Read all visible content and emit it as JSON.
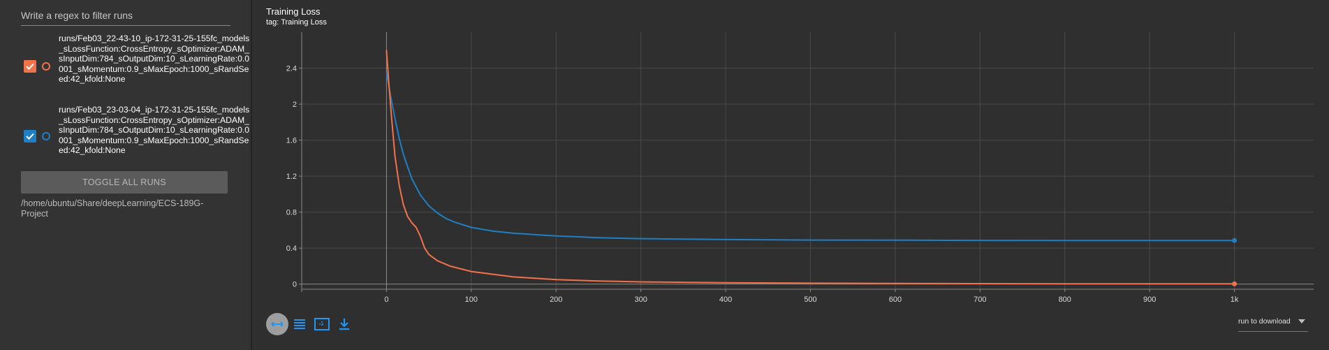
{
  "sidebar": {
    "filter_placeholder": "Write a regex to filter runs",
    "runs": [
      {
        "label": "runs/Feb03_22-43-10_ip-172-31-25-155fc_models_sLossFunction:CrossEntropy_sOptimizer:ADAM_sInputDim:784_sOutputDim:10_sLearningRate:0.0001_sMomentum:0.9_sMaxEpoch:1000_sRandSeed:42_kfold:None",
        "color": "#f2724a",
        "checked": true
      },
      {
        "label": "runs/Feb03_23-03-04_ip-172-31-25-155fc_models_sLossFunction:CrossEntropy_sOptimizer:ADAM_sInputDim:784_sOutputDim:10_sLearningRate:0.0001_sMomentum:0.9_sMaxEpoch:1000_sRandSeed:42_kfold:None",
        "color": "#1f7fc4",
        "checked": true
      }
    ],
    "toggle_label": "TOGGLE ALL RUNS",
    "logdir": "/home/ubuntu/Share/deepLearning/ECS-189G-Project"
  },
  "card": {
    "title": "Training Loss",
    "tag": "tag: Training Loss"
  },
  "toolbar": {
    "icons": [
      "expand-icon",
      "list-icon",
      "fit-domain-icon",
      "download-icon"
    ],
    "download_select": "run to download",
    "accent": "#2196f3"
  },
  "chart_data": {
    "type": "line",
    "xlim": [
      -100,
      1100
    ],
    "ylim": [
      -0.15,
      2.8
    ],
    "x_ticks": [
      0,
      100,
      200,
      300,
      400,
      500,
      600,
      700,
      800,
      900,
      1000
    ],
    "x_tick_labels": [
      "0",
      "100",
      "200",
      "300",
      "400",
      "500",
      "600",
      "700",
      "800",
      "900",
      "1k"
    ],
    "y_ticks": [
      0,
      0.4,
      0.8,
      1.2,
      1.6,
      2,
      2.4
    ],
    "y_tick_labels": [
      "0",
      "0.4",
      "0.8",
      "1.2",
      "1.6",
      "2",
      "2.4"
    ],
    "grid": true,
    "series": [
      {
        "color": "#1f7fc4",
        "x": [
          0,
          5,
          10,
          15,
          20,
          25,
          30,
          40,
          50,
          60,
          70,
          80,
          100,
          125,
          150,
          200,
          250,
          300,
          400,
          500,
          600,
          700,
          800,
          900,
          1000
        ],
        "y": [
          2.36,
          2.08,
          1.84,
          1.62,
          1.44,
          1.3,
          1.17,
          0.99,
          0.87,
          0.79,
          0.73,
          0.69,
          0.63,
          0.59,
          0.565,
          0.535,
          0.515,
          0.505,
          0.495,
          0.49,
          0.488,
          0.486,
          0.485,
          0.485,
          0.485
        ]
      },
      {
        "color": "#f2724a",
        "x": [
          0,
          3,
          6,
          10,
          15,
          20,
          25,
          30,
          35,
          40,
          45,
          50,
          60,
          75,
          100,
          150,
          200,
          250,
          300,
          400,
          500,
          600,
          700,
          800,
          900,
          1000
        ],
        "y": [
          2.6,
          2.2,
          1.85,
          1.42,
          1.1,
          0.88,
          0.75,
          0.68,
          0.63,
          0.53,
          0.4,
          0.33,
          0.26,
          0.2,
          0.14,
          0.08,
          0.05,
          0.035,
          0.025,
          0.015,
          0.01,
          0.007,
          0.005,
          0.004,
          0.003,
          0.003
        ]
      }
    ]
  }
}
